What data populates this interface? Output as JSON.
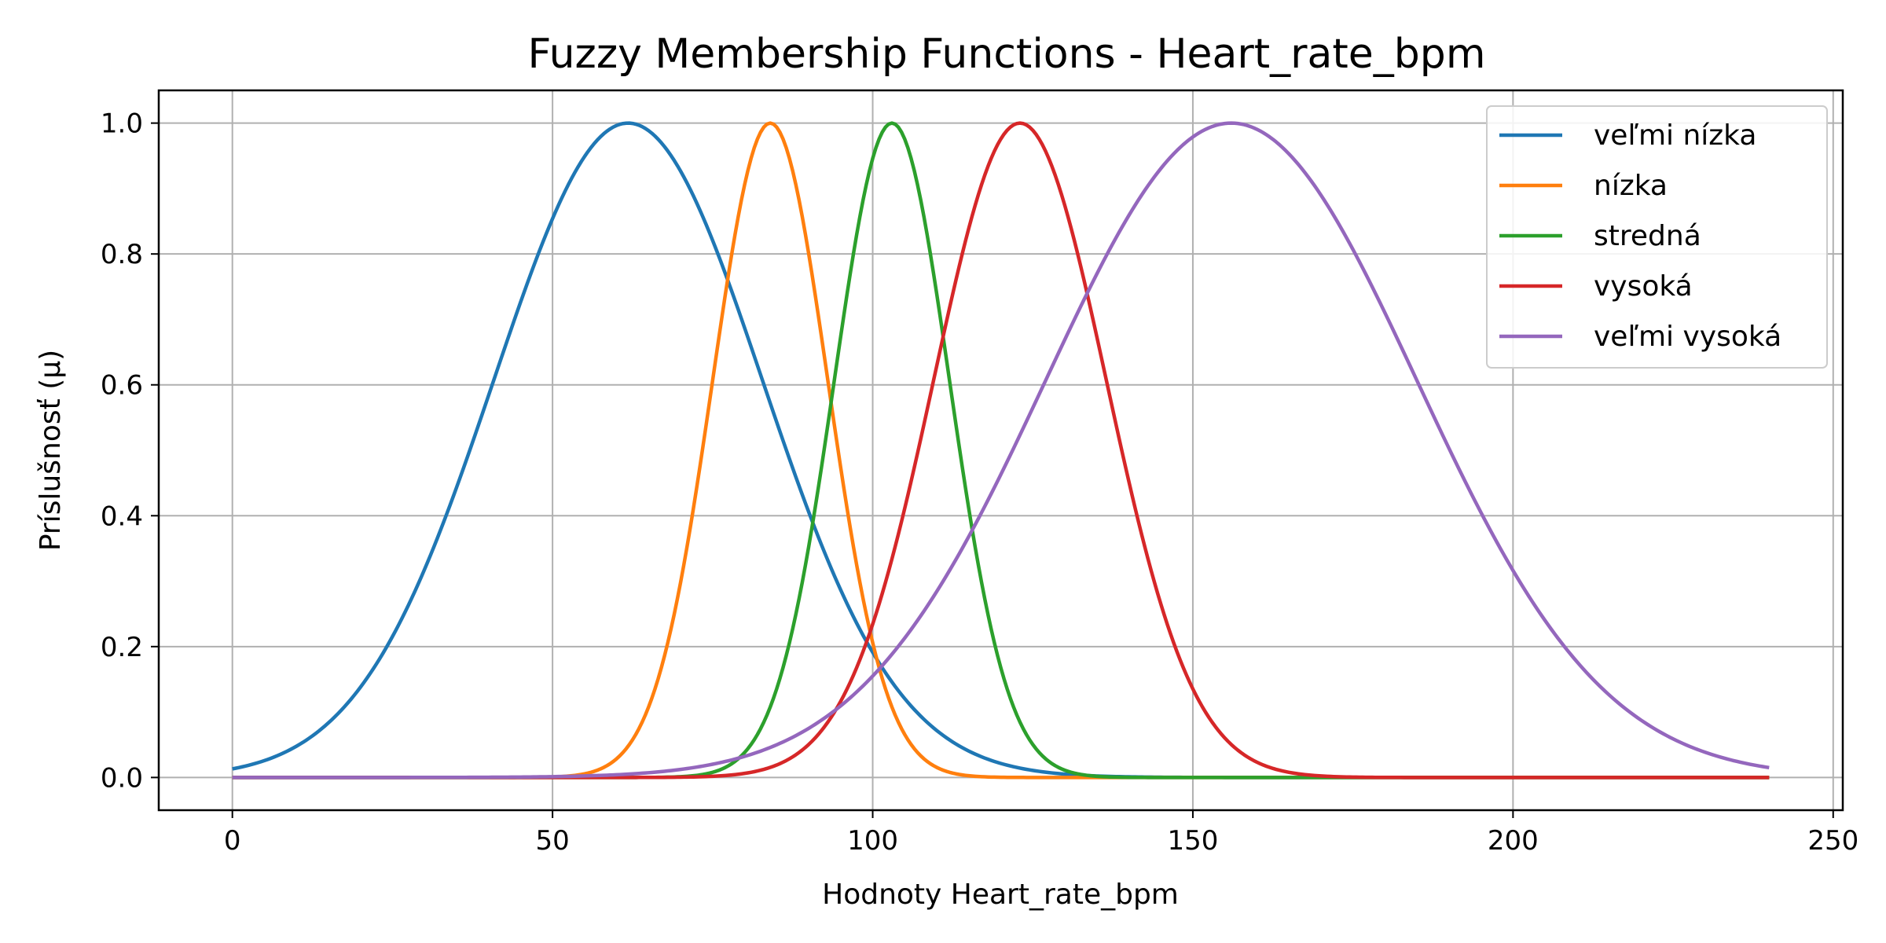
{
  "chart_data": {
    "type": "line",
    "title": "Fuzzy Membership Functions - Heart_rate_bpm",
    "xlabel": "Hodnoty Heart_rate_bpm",
    "ylabel": "Príslušnosť (μ)",
    "xlim": [
      -11.5,
      251.5
    ],
    "ylim": [
      -0.05,
      1.05
    ],
    "x_ticks": [
      0,
      50,
      100,
      150,
      200,
      250
    ],
    "y_ticks": [
      0.0,
      0.2,
      0.4,
      0.6,
      0.8,
      1.0
    ],
    "x_tick_labels": [
      "0",
      "50",
      "100",
      "150",
      "200",
      "250"
    ],
    "y_tick_labels": [
      "0.0",
      "0.2",
      "0.4",
      "0.6",
      "0.8",
      "1.0"
    ],
    "grid": true,
    "legend_position": "top-right",
    "x_range": [
      0,
      240
    ],
    "series": [
      {
        "name": "veľmi nízka",
        "shape": "gaussian",
        "mean": 61.8,
        "sigma": 21,
        "color": "#1f77b4"
      },
      {
        "name": "nízka",
        "shape": "gaussian",
        "mean": 84,
        "sigma": 9,
        "color": "#ff7f0e"
      },
      {
        "name": "stredná",
        "shape": "gaussian",
        "mean": 103,
        "sigma": 9,
        "color": "#2ca02c"
      },
      {
        "name": "vysoká",
        "shape": "gaussian",
        "mean": 123,
        "sigma": 13.5,
        "color": "#d62728"
      },
      {
        "name": "veľmi vysoká",
        "shape": "gaussian",
        "mean": 156,
        "sigma": 29,
        "color": "#9467bd"
      }
    ]
  }
}
